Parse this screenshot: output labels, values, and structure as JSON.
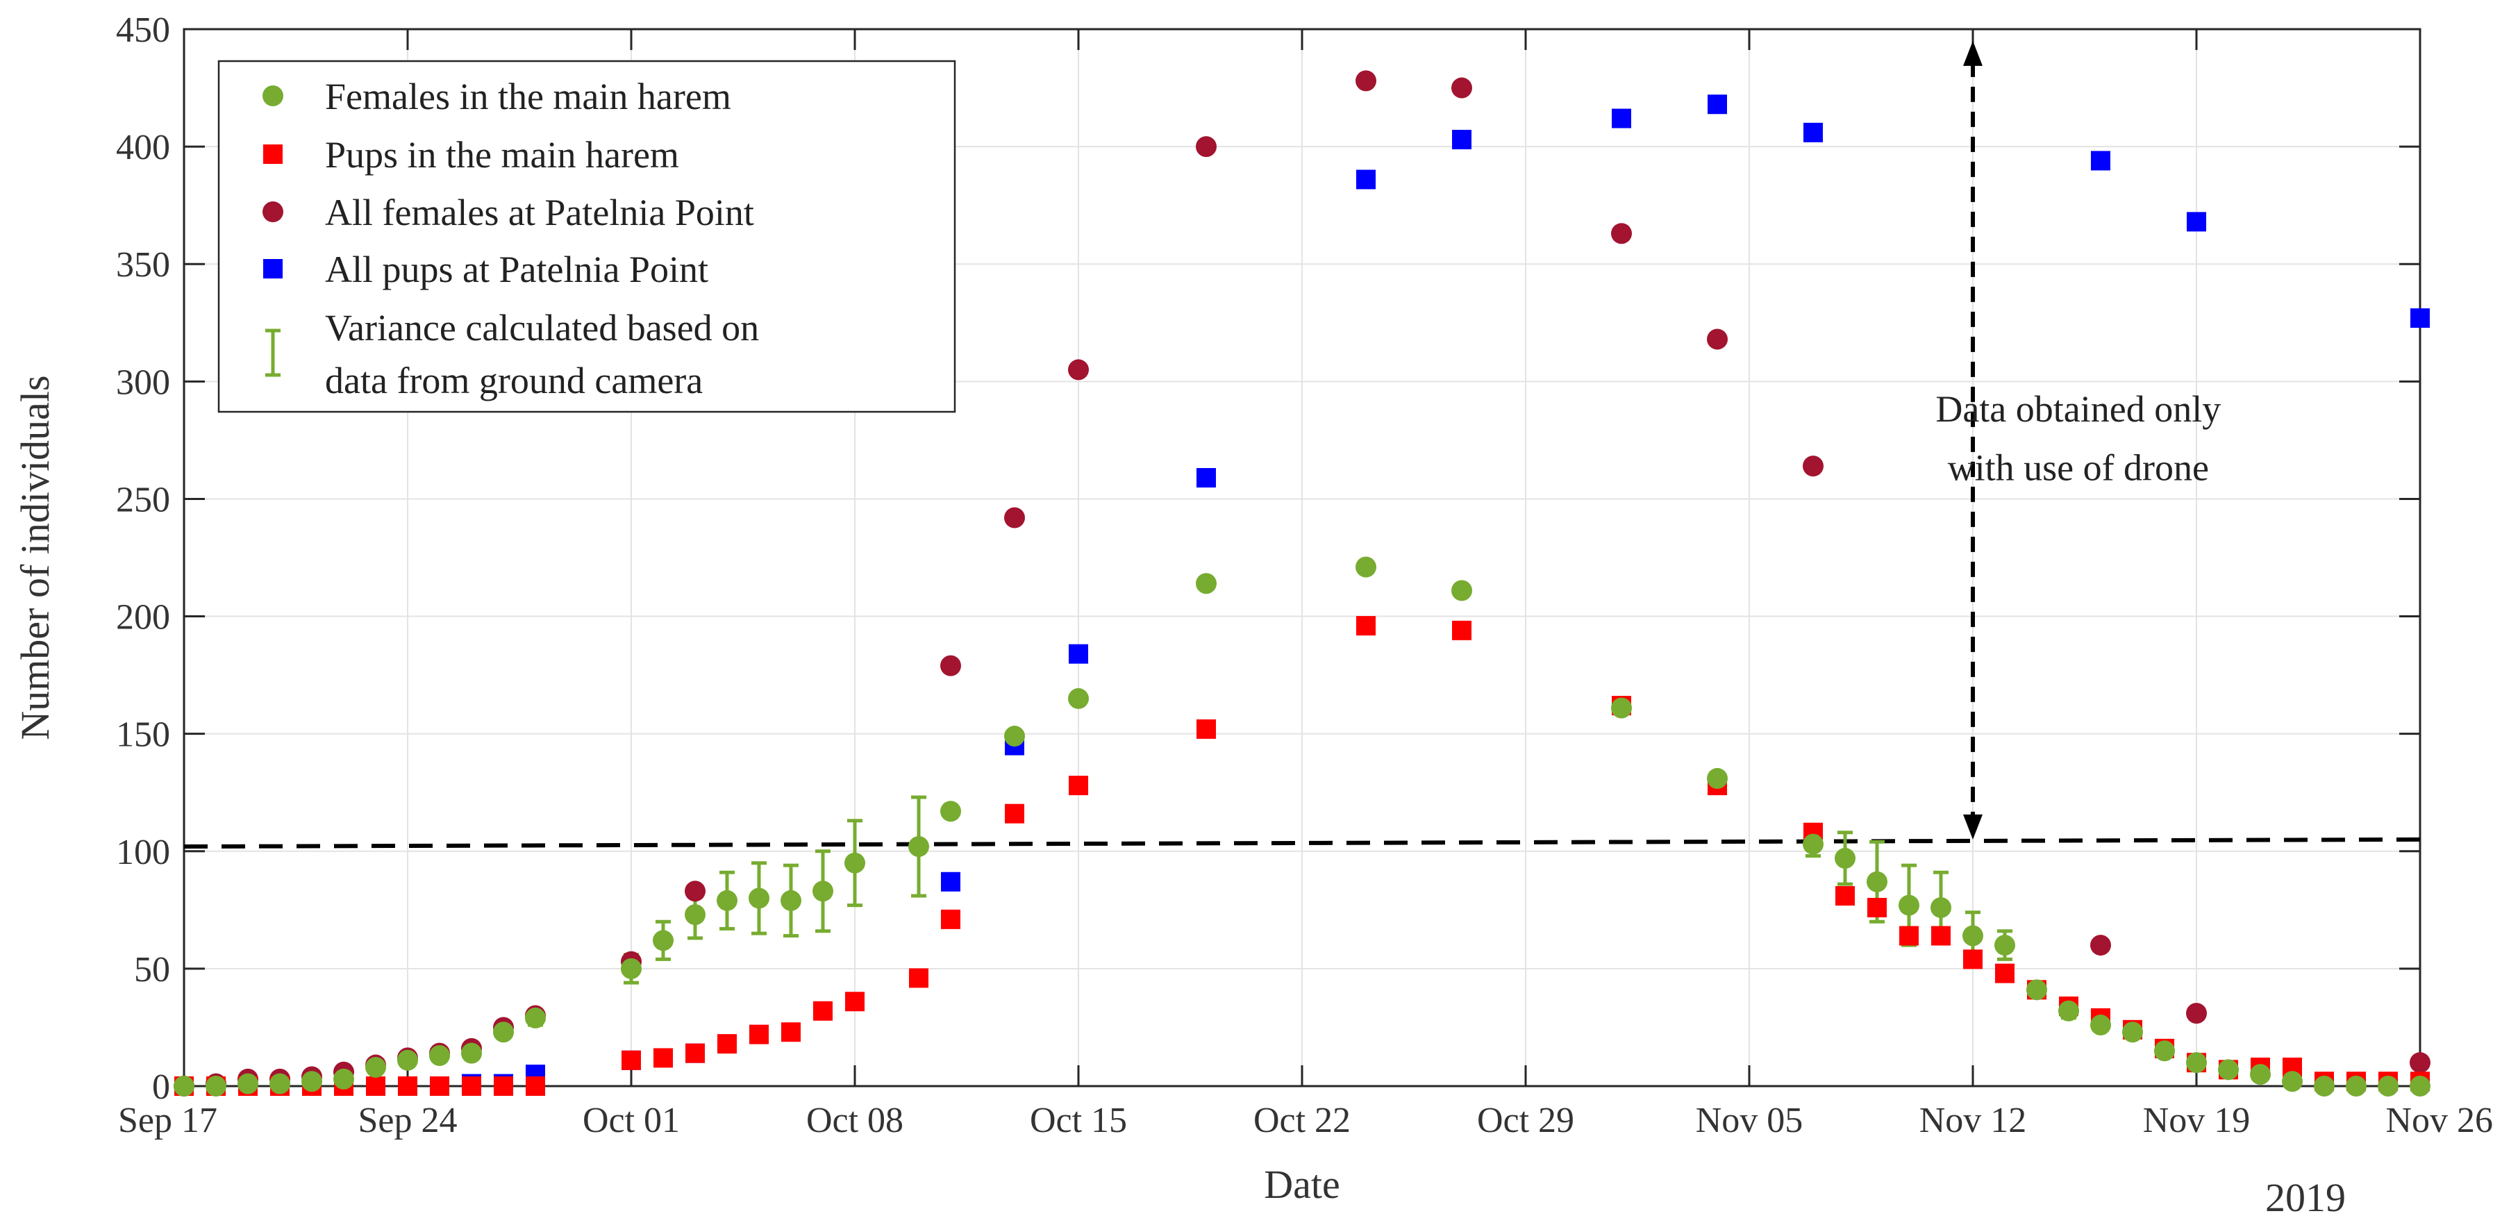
{
  "chart_data": {
    "type": "scatter",
    "title": "",
    "xlabel": "Date",
    "ylabel": "Number of individuals",
    "year_label": "2019",
    "x_unit": "days since Sep 17, 2019",
    "xlim": [
      0,
      70
    ],
    "ylim": [
      0,
      450
    ],
    "grid": true,
    "legend_position": "top-left",
    "x_ticks": [
      {
        "x": 0,
        "label": "Sep 17"
      },
      {
        "x": 7,
        "label": "Sep 24"
      },
      {
        "x": 14,
        "label": "Oct 01"
      },
      {
        "x": 21,
        "label": "Oct 08"
      },
      {
        "x": 28,
        "label": "Oct 15"
      },
      {
        "x": 35,
        "label": "Oct 22"
      },
      {
        "x": 42,
        "label": "Oct 29"
      },
      {
        "x": 49,
        "label": "Nov 05"
      },
      {
        "x": 56,
        "label": "Nov 12"
      },
      {
        "x": 63,
        "label": "Nov 19"
      },
      {
        "x": 70,
        "label": "Nov 26"
      }
    ],
    "y_ticks": [
      0,
      50,
      100,
      150,
      200,
      250,
      300,
      350,
      400,
      450
    ],
    "series": [
      {
        "name": "Females in the main harem",
        "marker": "circle",
        "color": "#77AC30",
        "points": [
          [
            0,
            0
          ],
          [
            1,
            0
          ],
          [
            2,
            1
          ],
          [
            3,
            1
          ],
          [
            4,
            2
          ],
          [
            5,
            3
          ],
          [
            6,
            8
          ],
          [
            7,
            11
          ],
          [
            8,
            13
          ],
          [
            9,
            14
          ],
          [
            10,
            23
          ],
          [
            11,
            29
          ],
          [
            14,
            50
          ],
          [
            15,
            62
          ],
          [
            16,
            73
          ],
          [
            17,
            79
          ],
          [
            18,
            80
          ],
          [
            19,
            79
          ],
          [
            20,
            83
          ],
          [
            21,
            95
          ],
          [
            23,
            102
          ],
          [
            24,
            117
          ],
          [
            26,
            149
          ],
          [
            28,
            165
          ],
          [
            32,
            214
          ],
          [
            37,
            221
          ],
          [
            40,
            211
          ],
          [
            45,
            161
          ],
          [
            48,
            131
          ],
          [
            51,
            103
          ],
          [
            52,
            97
          ],
          [
            53,
            87
          ],
          [
            54,
            77
          ],
          [
            55,
            76
          ],
          [
            56,
            64
          ],
          [
            57,
            60
          ],
          [
            58,
            41
          ],
          [
            59,
            32
          ],
          [
            60,
            26
          ],
          [
            61,
            23
          ],
          [
            62,
            15
          ],
          [
            63,
            10
          ],
          [
            64,
            7
          ],
          [
            65,
            5
          ],
          [
            66,
            2
          ],
          [
            67,
            0
          ],
          [
            68,
            0
          ],
          [
            69,
            0
          ],
          [
            70,
            0
          ]
        ]
      },
      {
        "name": "Pups in the main harem",
        "marker": "square",
        "color": "#FF0000",
        "points": [
          [
            0,
            0
          ],
          [
            1,
            0
          ],
          [
            2,
            0
          ],
          [
            3,
            0
          ],
          [
            4,
            0
          ],
          [
            5,
            0
          ],
          [
            6,
            0
          ],
          [
            7,
            0
          ],
          [
            8,
            0
          ],
          [
            9,
            0
          ],
          [
            10,
            0
          ],
          [
            11,
            0
          ],
          [
            14,
            11
          ],
          [
            15,
            12
          ],
          [
            16,
            14
          ],
          [
            17,
            18
          ],
          [
            18,
            22
          ],
          [
            19,
            23
          ],
          [
            20,
            32
          ],
          [
            21,
            36
          ],
          [
            23,
            46
          ],
          [
            24,
            71
          ],
          [
            26,
            116
          ],
          [
            28,
            128
          ],
          [
            32,
            152
          ],
          [
            37,
            196
          ],
          [
            40,
            194
          ],
          [
            45,
            162
          ],
          [
            48,
            128
          ],
          [
            51,
            108
          ],
          [
            52,
            81
          ],
          [
            53,
            76
          ],
          [
            54,
            64
          ],
          [
            55,
            64
          ],
          [
            56,
            54
          ],
          [
            57,
            48
          ],
          [
            58,
            41
          ],
          [
            59,
            34
          ],
          [
            60,
            29
          ],
          [
            61,
            24
          ],
          [
            62,
            16
          ],
          [
            63,
            10
          ],
          [
            64,
            7
          ],
          [
            65,
            8
          ],
          [
            66,
            8
          ],
          [
            67,
            2
          ],
          [
            68,
            2
          ],
          [
            69,
            2
          ],
          [
            70,
            2
          ]
        ]
      },
      {
        "name": "All females at Patelnia Point",
        "marker": "circle",
        "color": "#A2142F",
        "points": [
          [
            0,
            0
          ],
          [
            1,
            1
          ],
          [
            2,
            3
          ],
          [
            3,
            3
          ],
          [
            4,
            4
          ],
          [
            5,
            6
          ],
          [
            6,
            9
          ],
          [
            7,
            12
          ],
          [
            8,
            14
          ],
          [
            9,
            16
          ],
          [
            10,
            25
          ],
          [
            11,
            30
          ],
          [
            14,
            53
          ],
          [
            16,
            83
          ],
          [
            24,
            179
          ],
          [
            26,
            242
          ],
          [
            28,
            305
          ],
          [
            32,
            400
          ],
          [
            37,
            428
          ],
          [
            40,
            425
          ],
          [
            45,
            363
          ],
          [
            48,
            318
          ],
          [
            51,
            264
          ],
          [
            60,
            60
          ],
          [
            63,
            31
          ],
          [
            70,
            10
          ]
        ]
      },
      {
        "name": "All pups at Patelnia Point",
        "marker": "square",
        "color": "#0000FF",
        "points": [
          [
            0,
            0
          ],
          [
            1,
            0
          ],
          [
            2,
            0
          ],
          [
            3,
            0
          ],
          [
            4,
            0
          ],
          [
            5,
            0
          ],
          [
            6,
            0
          ],
          [
            7,
            0
          ],
          [
            8,
            0
          ],
          [
            9,
            1
          ],
          [
            10,
            1
          ],
          [
            11,
            5
          ],
          [
            14,
            11
          ],
          [
            16,
            14
          ],
          [
            24,
            87
          ],
          [
            26,
            145
          ],
          [
            28,
            184
          ],
          [
            32,
            259
          ],
          [
            37,
            386
          ],
          [
            40,
            403
          ],
          [
            45,
            412
          ],
          [
            48,
            418
          ],
          [
            51,
            406
          ],
          [
            60,
            394
          ],
          [
            63,
            368
          ],
          [
            70,
            327
          ]
        ]
      }
    ],
    "error_bars": {
      "name": "Variance calculated based on data from ground camera",
      "color": "#77AC30",
      "points": [
        [
          9,
          14,
          1.5
        ],
        [
          10,
          23,
          2
        ],
        [
          11,
          29,
          3
        ],
        [
          14,
          50,
          6
        ],
        [
          15,
          62,
          8
        ],
        [
          16,
          73,
          10
        ],
        [
          17,
          79,
          12
        ],
        [
          18,
          80,
          15
        ],
        [
          19,
          79,
          15
        ],
        [
          20,
          83,
          17
        ],
        [
          21,
          95,
          18
        ],
        [
          23,
          102,
          21
        ],
        [
          51,
          103,
          5
        ],
        [
          52,
          97,
          11
        ],
        [
          53,
          87,
          17
        ],
        [
          54,
          77,
          17
        ],
        [
          55,
          76,
          15
        ],
        [
          56,
          64,
          10
        ],
        [
          57,
          60,
          6
        ],
        [
          58,
          41,
          3
        ],
        [
          59,
          32,
          3
        ],
        [
          60,
          26,
          2
        ],
        [
          61,
          23,
          2
        ],
        [
          62,
          15,
          2
        ],
        [
          63,
          10,
          1
        ]
      ]
    },
    "reference_line": {
      "style": "dashed",
      "color": "#000000",
      "from": [
        0,
        102
      ],
      "to": [
        70,
        105
      ]
    },
    "annotation": {
      "lines": [
        "Data obtained only",
        "with use of drone"
      ],
      "arrow": {
        "x": 56,
        "y_from": 105,
        "y_to": 445
      }
    },
    "legend": [
      {
        "label": "Females in the main harem",
        "marker": "circle",
        "color": "#77AC30"
      },
      {
        "label": "Pups in the main harem",
        "marker": "square",
        "color": "#FF0000"
      },
      {
        "label": "All females at Patelnia Point",
        "marker": "circle",
        "color": "#A2142F"
      },
      {
        "label": "All pups at Patelnia Point",
        "marker": "square",
        "color": "#0000FF"
      },
      {
        "label_lines": [
          "Variance calculated based on",
          "data from ground camera"
        ],
        "marker": "errorbar",
        "color": "#77AC30"
      }
    ]
  }
}
